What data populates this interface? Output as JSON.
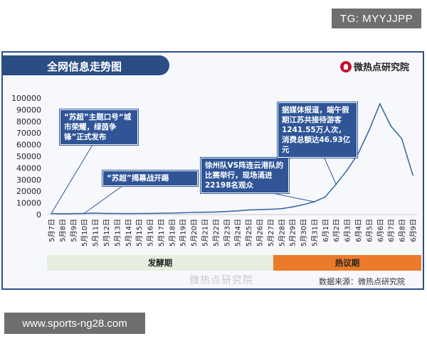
{
  "tg_label": "TG: MYYJJPP",
  "url_label": "www.sports-ng28.com",
  "title": "全网信息走势图",
  "logo_text": "微热点研究院",
  "watermark": "微热点研究院",
  "source": "数据来源：微热点研究院",
  "callouts": [
    {
      "text": "“苏超”主题口号“城市荣耀，绿茵争锋”正式发布"
    },
    {
      "text": "“苏超”揭幕战开踢"
    },
    {
      "text": "徐州队VS阵连云港队的比赛举行，现场涌进22198名观众"
    },
    {
      "text": "据媒体报道，端午假期江苏共接待游客1241.55万人次，消费总额达46.93亿元"
    }
  ],
  "phases": [
    {
      "label": "发酵期",
      "color": "#e6efdf"
    },
    {
      "label": "热议期",
      "color": "#ec7a2b"
    }
  ],
  "colors": {
    "line": "#3f6aa5",
    "title_bg": "#2a4e84",
    "callout_bg": "#2f5597"
  },
  "chart_data": {
    "type": "line",
    "title": "全网信息走势图",
    "ylim": [
      0,
      100000
    ],
    "yticks": [
      0,
      10000,
      20000,
      30000,
      40000,
      50000,
      60000,
      70000,
      80000,
      90000,
      100000
    ],
    "grid": false,
    "categories": [
      "5月7日",
      "5月8日",
      "5月9日",
      "5月10日",
      "5月11日",
      "5月12日",
      "5月13日",
      "5月14日",
      "5月15日",
      "5月16日",
      "5月17日",
      "5月18日",
      "5月19日",
      "5月20日",
      "5月21日",
      "5月22日",
      "5月23日",
      "5月24日",
      "5月25日",
      "5月26日",
      "5月27日",
      "5月28日",
      "5月29日",
      "5月30日",
      "5月31日",
      "6月1日",
      "6月2日",
      "6月3日",
      "6月4日",
      "6月5日",
      "6月6日",
      "6月7日",
      "6月8日",
      "6月9日"
    ],
    "series": [
      {
        "values": [
          900,
          700,
          800,
          1000,
          1200,
          1000,
          900,
          800,
          900,
          1000,
          1100,
          1200,
          1500,
          1800,
          2000,
          2200,
          2600,
          3200,
          3900,
          4200,
          4500,
          5000,
          6500,
          8500,
          11000,
          15000,
          26000,
          38000,
          52000,
          72000,
          95000,
          76000,
          65000,
          34000
        ]
      }
    ]
  }
}
